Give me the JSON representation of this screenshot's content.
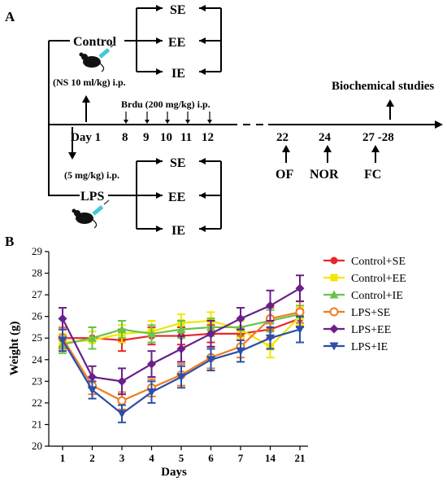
{
  "panel_a": {
    "label": "A",
    "control": "Control",
    "control_dose": "(NS 10 ml/kg) i.p.",
    "lps": "LPS",
    "lps_dose": "(5 mg/kg) i.p.",
    "brdu": "Brdu (200 mg/kg) i.p.",
    "biochem": "Biochemical studies",
    "groups": [
      "SE",
      "EE",
      "IE"
    ],
    "timeline_days": [
      "Day 1",
      "8",
      "9",
      "10",
      "11",
      "12"
    ],
    "test_days": [
      "22",
      "24",
      "27 -28"
    ],
    "tests": [
      "OF",
      "NOR",
      "FC"
    ],
    "mouse_icon": "mouse-icon",
    "syringe_icon": "syringe-icon"
  },
  "panel_b": {
    "label": "B"
  },
  "chart_data": {
    "type": "line",
    "xlabel": "Days",
    "ylabel": "Weight (g)",
    "categories": [
      "1",
      "2",
      "3",
      "4",
      "5",
      "6",
      "7",
      "14",
      "21"
    ],
    "ylim": [
      20,
      29
    ],
    "yticks": [
      "20",
      "21",
      "22",
      "23",
      "24",
      "25",
      "26",
      "27",
      "28",
      "29"
    ],
    "legend_position": "right",
    "series": [
      {
        "name": "Control+SE",
        "color": "#e8262a",
        "marker": "circle",
        "values": [
          25.0,
          25.0,
          24.9,
          25.1,
          25.1,
          25.2,
          25.2,
          25.4,
          25.9
        ],
        "errors": [
          0.4,
          0.5,
          0.5,
          0.4,
          0.4,
          0.4,
          0.3,
          0.4,
          0.4
        ]
      },
      {
        "name": "Control+EE",
        "color": "#f2e600",
        "marker": "square",
        "values": [
          24.8,
          24.9,
          25.2,
          25.3,
          25.7,
          25.8,
          25.4,
          24.6,
          26.0
        ],
        "errors": [
          0.4,
          0.4,
          0.4,
          0.5,
          0.4,
          0.4,
          0.4,
          0.5,
          0.4
        ]
      },
      {
        "name": "Control+IE",
        "color": "#69c34b",
        "marker": "triangle",
        "values": [
          24.7,
          25.0,
          25.4,
          25.2,
          25.4,
          25.5,
          25.5,
          25.8,
          26.1
        ],
        "errors": [
          0.4,
          0.5,
          0.4,
          0.4,
          0.4,
          0.4,
          0.4,
          0.5,
          0.4
        ]
      },
      {
        "name": "LPS+SE",
        "color": "#f07c1e",
        "marker": "open-circle",
        "values": [
          25.0,
          22.8,
          22.1,
          22.7,
          23.3,
          24.1,
          24.6,
          25.9,
          26.2
        ],
        "errors": [
          0.5,
          0.4,
          0.4,
          0.4,
          0.5,
          0.5,
          0.5,
          0.5,
          0.5
        ]
      },
      {
        "name": "LPS+EE",
        "color": "#6a1f8a",
        "marker": "diamond",
        "values": [
          25.9,
          23.2,
          23.0,
          23.8,
          24.5,
          25.2,
          25.9,
          26.5,
          27.3
        ],
        "errors": [
          0.5,
          0.5,
          0.6,
          0.6,
          0.6,
          0.6,
          0.5,
          0.7,
          0.6
        ]
      },
      {
        "name": "LPS+IE",
        "color": "#2b4fa8",
        "marker": "triangle-down",
        "values": [
          24.9,
          22.6,
          21.5,
          22.5,
          23.2,
          24.0,
          24.4,
          25.0,
          25.4
        ],
        "errors": [
          0.5,
          0.4,
          0.4,
          0.5,
          0.5,
          0.5,
          0.5,
          0.5,
          0.6
        ]
      }
    ]
  }
}
